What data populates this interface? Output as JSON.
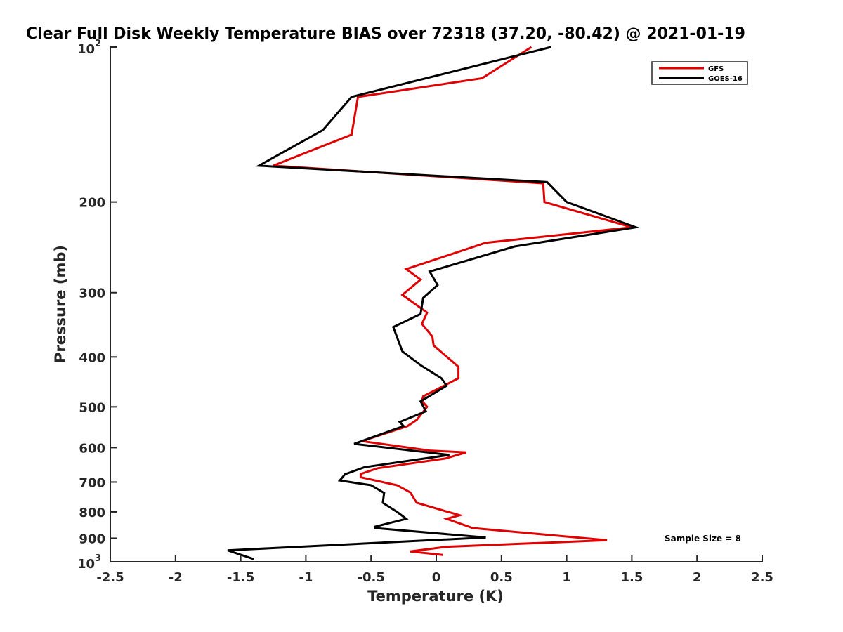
{
  "chart_data": {
    "type": "line",
    "title": "Clear Full Disk Weekly Temperature BIAS over 72318 (37.20, -80.42) @ 2021-01-19",
    "xlabel": "Temperature (K)",
    "ylabel": "Pressure (mb)",
    "xlim": [
      -2.5,
      2.5
    ],
    "ylim": [
      100,
      1000
    ],
    "yscale": "log",
    "y_reversed": true,
    "x_ticks": [
      "-2.5",
      "-2",
      "-1.5",
      "-1",
      "-0.5",
      "0",
      "0.5",
      "1",
      "1.5",
      "2",
      "2.5"
    ],
    "y_ticks": [
      {
        "value": 100,
        "base": "10",
        "exp": "2"
      },
      {
        "value": 200,
        "label": "200"
      },
      {
        "value": 300,
        "label": "300"
      },
      {
        "value": 400,
        "label": "400"
      },
      {
        "value": 500,
        "label": "500"
      },
      {
        "value": 600,
        "label": "600"
      },
      {
        "value": 700,
        "label": "700"
      },
      {
        "value": 800,
        "label": "800"
      },
      {
        "value": 900,
        "label": "900"
      },
      {
        "value": 1000,
        "base": "10",
        "exp": "3"
      }
    ],
    "grid": false,
    "legend_position": "top-right",
    "annotation": "Sample Size = 8",
    "series": [
      {
        "name": "GFS",
        "color": "#e00000",
        "points": [
          [
            0.73,
            100
          ],
          [
            0.35,
            115
          ],
          [
            -0.6,
            125
          ],
          [
            -0.65,
            148
          ],
          [
            -1.25,
            170
          ],
          [
            0.82,
            184
          ],
          [
            0.83,
            200
          ],
          [
            1.5,
            224
          ],
          [
            0.38,
            240
          ],
          [
            -0.23,
            270
          ],
          [
            -0.12,
            283
          ],
          [
            -0.26,
            303
          ],
          [
            -0.07,
            328
          ],
          [
            -0.11,
            345
          ],
          [
            -0.03,
            365
          ],
          [
            -0.02,
            380
          ],
          [
            0.17,
            418
          ],
          [
            0.17,
            440
          ],
          [
            -0.1,
            477
          ],
          [
            -0.11,
            487
          ],
          [
            -0.07,
            500
          ],
          [
            -0.15,
            530
          ],
          [
            -0.22,
            545
          ],
          [
            -0.57,
            583
          ],
          [
            -0.05,
            608
          ],
          [
            0.23,
            613
          ],
          [
            0.07,
            630
          ],
          [
            -0.45,
            658
          ],
          [
            -0.58,
            675
          ],
          [
            -0.58,
            685
          ],
          [
            -0.3,
            710
          ],
          [
            -0.2,
            733
          ],
          [
            -0.15,
            768
          ],
          [
            0.18,
            812
          ],
          [
            0.08,
            825
          ],
          [
            0.28,
            860
          ],
          [
            1.31,
            908
          ],
          [
            0.08,
            935
          ],
          [
            -0.2,
            955
          ],
          [
            0.05,
            970
          ]
        ]
      },
      {
        "name": "GOES-16",
        "color": "#000000",
        "points": [
          [
            0.88,
            100
          ],
          [
            -0.65,
            125
          ],
          [
            -0.87,
            145
          ],
          [
            -1.36,
            170
          ],
          [
            0.85,
            183
          ],
          [
            1.0,
            200
          ],
          [
            1.53,
            224
          ],
          [
            0.6,
            244
          ],
          [
            -0.05,
            273
          ],
          [
            0.01,
            290
          ],
          [
            -0.1,
            307
          ],
          [
            -0.12,
            330
          ],
          [
            -0.33,
            350
          ],
          [
            -0.26,
            390
          ],
          [
            -0.12,
            415
          ],
          [
            0.04,
            440
          ],
          [
            0.08,
            455
          ],
          [
            -0.12,
            488
          ],
          [
            -0.08,
            510
          ],
          [
            -0.28,
            535
          ],
          [
            -0.25,
            545
          ],
          [
            -0.63,
            590
          ],
          [
            0.1,
            620
          ],
          [
            -0.55,
            655
          ],
          [
            -0.7,
            676
          ],
          [
            -0.74,
            695
          ],
          [
            -0.5,
            710
          ],
          [
            -0.4,
            735
          ],
          [
            -0.41,
            768
          ],
          [
            -0.3,
            800
          ],
          [
            -0.23,
            825
          ],
          [
            -0.47,
            855
          ],
          [
            -0.47,
            860
          ],
          [
            0.38,
            897
          ],
          [
            -1.6,
            950
          ],
          [
            -1.4,
            988
          ]
        ]
      }
    ]
  }
}
